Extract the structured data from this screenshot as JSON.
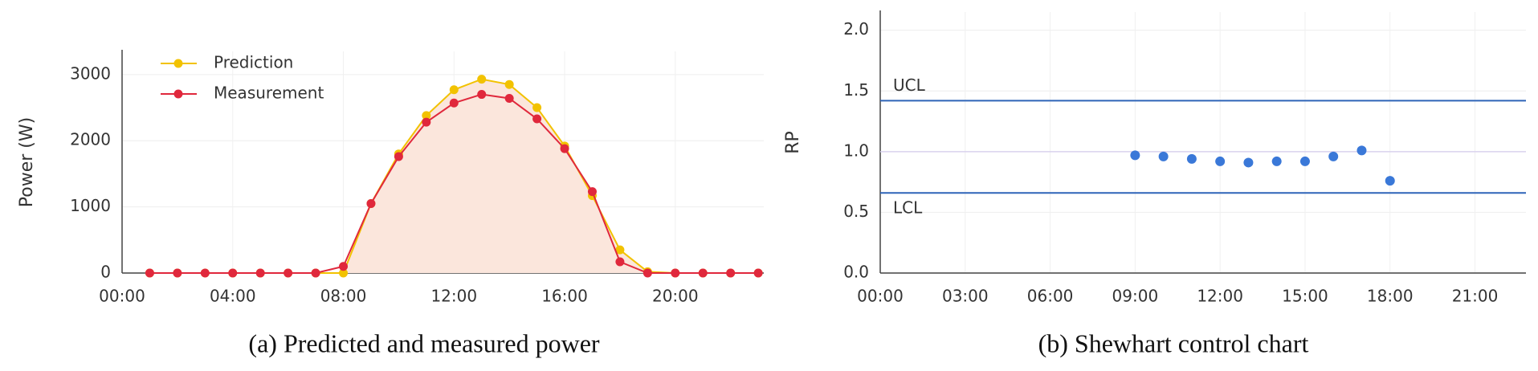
{
  "chart_data": [
    {
      "type": "line",
      "title": "(a) Predicted and measured power",
      "y_label": "Power (W)",
      "x": [
        1,
        2,
        3,
        4,
        5,
        6,
        7,
        8,
        9,
        10,
        11,
        12,
        13,
        14,
        15,
        16,
        17,
        18,
        19,
        20,
        21,
        22,
        23
      ],
      "series": [
        {
          "name": "Prediction",
          "color": "#f2c200",
          "values": [
            0,
            0,
            0,
            0,
            0,
            0,
            0,
            0,
            1050,
            1800,
            2380,
            2770,
            2930,
            2850,
            2500,
            1920,
            1170,
            350,
            20,
            0,
            0,
            0,
            0
          ]
        },
        {
          "name": "Measurement",
          "color": "#e0283c",
          "values": [
            0,
            0,
            0,
            0,
            0,
            0,
            0,
            100,
            1050,
            1760,
            2280,
            2570,
            2700,
            2640,
            2330,
            1880,
            1230,
            170,
            0,
            0,
            0,
            0,
            0
          ]
        }
      ],
      "area_color": "#fbe6dc",
      "xlim": [
        0,
        23.2
      ],
      "xticks": [
        {
          "value": 0,
          "label": "00:00"
        },
        {
          "value": 4,
          "label": "04:00"
        },
        {
          "value": 8,
          "label": "08:00"
        },
        {
          "value": 12,
          "label": "12:00"
        },
        {
          "value": 16,
          "label": "16:00"
        },
        {
          "value": 20,
          "label": "20:00"
        }
      ],
      "ylim": [
        0,
        3350
      ],
      "yticks": [
        0,
        1000,
        2000,
        3000
      ],
      "grid": true,
      "legend": "upper left"
    },
    {
      "type": "scatter",
      "title": "(b) Shewhart control chart",
      "y_label": "RP",
      "x": [
        9,
        10,
        11,
        12,
        13,
        14,
        15,
        16,
        17,
        18
      ],
      "series": [
        {
          "color": "#3a78d8",
          "values": [
            0.97,
            0.96,
            0.94,
            0.92,
            0.91,
            0.92,
            0.92,
            0.96,
            1.01,
            0.76
          ]
        }
      ],
      "control_limits": [
        {
          "name": "UCL",
          "value": 1.42,
          "color": "#2e64b8"
        },
        {
          "name": "LCL",
          "value": 0.66,
          "color": "#2e64b8"
        }
      ],
      "center_line": 1.0,
      "center_color": "#d9d2ee",
      "xlim": [
        0,
        22.8
      ],
      "xticks": [
        {
          "value": 0,
          "label": "00:00"
        },
        {
          "value": 3,
          "label": "03:00"
        },
        {
          "value": 6,
          "label": "06:00"
        },
        {
          "value": 9,
          "label": "09:00"
        },
        {
          "value": 12,
          "label": "12:00"
        },
        {
          "value": 15,
          "label": "15:00"
        },
        {
          "value": 18,
          "label": "18:00"
        },
        {
          "value": 21,
          "label": "21:00"
        }
      ],
      "ylim": [
        0,
        2.15
      ],
      "yticks": [
        {
          "value": 0,
          "label": "0.0"
        },
        {
          "value": 0.5,
          "label": "0.5"
        },
        {
          "value": 1,
          "label": "1.0"
        },
        {
          "value": 1.5,
          "label": "1.5"
        },
        {
          "value": 2,
          "label": "2.0"
        }
      ],
      "grid": true
    }
  ]
}
